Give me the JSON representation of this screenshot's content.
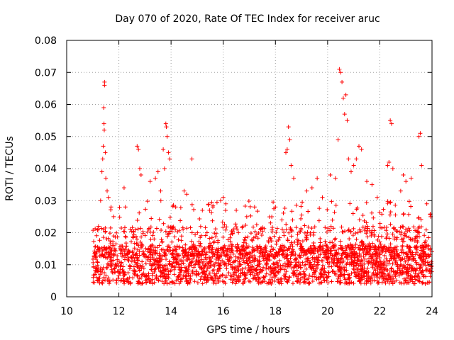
{
  "chart_data": {
    "type": "scatter",
    "title": "Day 070 of 2020, Rate Of TEC Index for receiver aruc",
    "xlabel": "GPS time / hours",
    "ylabel": "ROTI / TECUs",
    "xlim": [
      10,
      24
    ],
    "ylim": [
      0,
      0.08
    ],
    "xticks": [
      "10",
      "12",
      "14",
      "16",
      "18",
      "20",
      "22",
      "24"
    ],
    "yticks": [
      "0",
      "0.01",
      "0.02",
      "0.03",
      "0.04",
      "0.05",
      "0.06",
      "0.07",
      "0.08"
    ],
    "grid": true,
    "marker": "plus",
    "color": "#ff0000",
    "series": [
      {
        "x": [
          11.45,
          11.45,
          11.42,
          11.43,
          11.44,
          11.4,
          11.38,
          11.35,
          11.48,
          11.5,
          11.3,
          11.55,
          11.6,
          11.7,
          11.8,
          12.2,
          12.25,
          12.7,
          12.75,
          12.8,
          12.85,
          13.2,
          13.4,
          13.5,
          13.6,
          13.7,
          13.8,
          13.82,
          13.85,
          13.9,
          13.95,
          13.75,
          14.5,
          14.6,
          14.8,
          15.2,
          15.6,
          15.9,
          16.0,
          16.1,
          16.5,
          16.9,
          17.2,
          18.0,
          18.4,
          18.45,
          18.5,
          18.55,
          18.6,
          18.7,
          19.2,
          19.4,
          19.6,
          19.8,
          20.1,
          20.3,
          20.45,
          20.5,
          20.55,
          20.6,
          20.65,
          20.7,
          20.75,
          20.4,
          20.8,
          20.9,
          21.0,
          21.1,
          21.2,
          21.3,
          21.5,
          21.7,
          21.9,
          22.3,
          22.35,
          22.4,
          22.45,
          22.5,
          22.8,
          22.9,
          23.0,
          23.2,
          23.5,
          23.55,
          23.6,
          23.8,
          23.95
        ],
        "y": [
          0.067,
          0.066,
          0.059,
          0.054,
          0.052,
          0.047,
          0.043,
          0.039,
          0.045,
          0.037,
          0.03,
          0.033,
          0.031,
          0.028,
          0.025,
          0.034,
          0.028,
          0.047,
          0.046,
          0.04,
          0.038,
          0.036,
          0.037,
          0.039,
          0.033,
          0.046,
          0.054,
          0.053,
          0.05,
          0.045,
          0.043,
          0.04,
          0.033,
          0.032,
          0.043,
          0.027,
          0.028,
          0.03,
          0.031,
          0.029,
          0.027,
          0.025,
          0.028,
          0.028,
          0.045,
          0.046,
          0.053,
          0.049,
          0.041,
          0.037,
          0.033,
          0.034,
          0.037,
          0.031,
          0.038,
          0.037,
          0.071,
          0.07,
          0.067,
          0.062,
          0.057,
          0.063,
          0.055,
          0.049,
          0.043,
          0.039,
          0.041,
          0.043,
          0.047,
          0.046,
          0.036,
          0.035,
          0.031,
          0.041,
          0.042,
          0.055,
          0.054,
          0.04,
          0.033,
          0.038,
          0.036,
          0.037,
          0.05,
          0.051,
          0.041,
          0.029,
          0.025
        ]
      }
    ],
    "background_band": {
      "x_range": [
        11.0,
        24.0
      ],
      "y_typical_range": [
        0.003,
        0.025
      ],
      "note": "dense band"
    }
  }
}
